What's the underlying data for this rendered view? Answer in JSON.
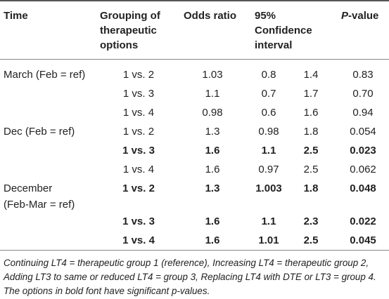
{
  "headers": {
    "time": "Time",
    "grouping_line1": "Grouping of",
    "grouping_line2": "therapeutic",
    "grouping_line3": "options",
    "odds_ratio": "Odds ratio",
    "ci_line1": "95%",
    "ci_line2": "Confidence",
    "ci_line3": "interval",
    "pvalue_p": "P",
    "pvalue_rest": "-value"
  },
  "rows": [
    {
      "time": "March (Feb = ref)",
      "time2": "",
      "group": "1 vs. 2",
      "or": "1.03",
      "lo": "0.8",
      "hi": "1.4",
      "p": "0.83",
      "bold": false
    },
    {
      "time": "",
      "time2": "",
      "group": "1 vs. 3",
      "or": "1.1",
      "lo": "0.7",
      "hi": "1.7",
      "p": "0.70",
      "bold": false
    },
    {
      "time": "",
      "time2": "",
      "group": "1 vs. 4",
      "or": "0.98",
      "lo": "0.6",
      "hi": "1.6",
      "p": "0.94",
      "bold": false
    },
    {
      "time": "Dec (Feb = ref)",
      "time2": "",
      "group": "1 vs. 2",
      "or": "1.3",
      "lo": "0.98",
      "hi": "1.8",
      "p": "0.054",
      "bold": false
    },
    {
      "time": "",
      "time2": "",
      "group": "1 vs. 3",
      "or": "1.6",
      "lo": "1.1",
      "hi": "2.5",
      "p": "0.023",
      "bold": true
    },
    {
      "time": "",
      "time2": "",
      "group": "1 vs. 4",
      "or": "1.6",
      "lo": "0.97",
      "hi": "2.5",
      "p": "0.062",
      "bold": false
    },
    {
      "time": "December",
      "time2": "(Feb-Mar = ref)",
      "group": "1 vs. 2",
      "or": "1.3",
      "lo": "1.003",
      "hi": "1.8",
      "p": "0.048",
      "bold": true
    },
    {
      "time": "",
      "time2": "",
      "group": "1 vs. 3",
      "or": "1.6",
      "lo": "1.1",
      "hi": "2.3",
      "p": "0.022",
      "bold": true
    },
    {
      "time": "",
      "time2": "",
      "group": "1 vs. 4",
      "or": "1.6",
      "lo": "1.01",
      "hi": "2.5",
      "p": "0.045",
      "bold": true
    }
  ],
  "footnote": "Continuing LT4 = therapeutic group 1 (reference), Increasing LT4 = therapeutic group 2, Adding LT3 to same or reduced LT4 = group 3, Replacing LT4 with DTE or LT3 = group 4. The options in bold font have significant p-values."
}
